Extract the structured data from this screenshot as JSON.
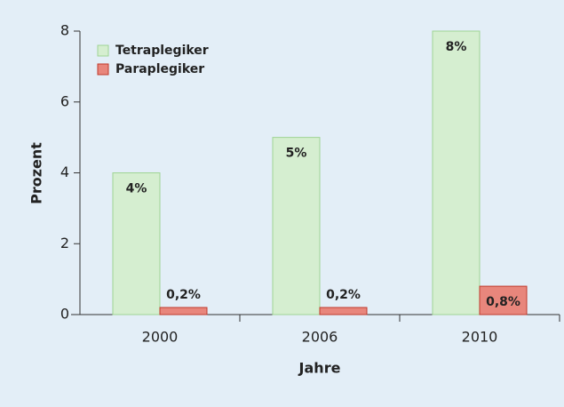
{
  "chart_data": {
    "type": "bar",
    "categories": [
      "2000",
      "2006",
      "2010"
    ],
    "series": [
      {
        "name": "Tetraplegiker",
        "color": "#d5eed0",
        "values": [
          4,
          5,
          8
        ],
        "value_labels": [
          "4%",
          "5%",
          "8%"
        ]
      },
      {
        "name": "Paraplegiker",
        "color": "#e8867c",
        "values": [
          0.2,
          0.2,
          0.8
        ],
        "value_labels": [
          "0,2%",
          "0,2%",
          "0,8%"
        ]
      }
    ],
    "ylabel": "Prozent",
    "xlabel": "Jahre",
    "ylim": [
      0,
      8
    ],
    "yticks": [
      0,
      2,
      4,
      6,
      8
    ],
    "legend": "upper left",
    "grid": false
  }
}
